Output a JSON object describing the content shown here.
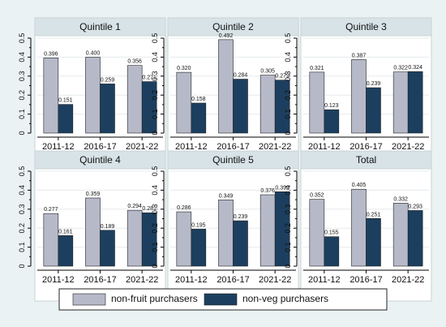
{
  "chart_data": {
    "type": "bar",
    "categories": [
      "2011-12",
      "2016-17",
      "2021-22"
    ],
    "ylim": [
      0,
      0.5
    ],
    "yticks": [
      0,
      0.05,
      0.1,
      0.15,
      0.2,
      0.25,
      0.3,
      0.35,
      0.4,
      0.45,
      0.5
    ],
    "ytick_labels": [
      "0",
      "",
      "0.1",
      "",
      "0.2",
      "",
      "0.3",
      "",
      "0.4",
      "",
      "0.5"
    ],
    "grid": true,
    "legend_position": "bottom",
    "series_colors": [
      "#b6b9c8",
      "#1c3f5f"
    ],
    "series_names": [
      "non-fruit purchasers",
      "non-veg purchasers"
    ],
    "panels": [
      {
        "title": "Quintile 1",
        "series": [
          {
            "name": "non-fruit purchasers",
            "values": [
              0.396,
              0.4,
              0.356
            ],
            "labels": [
              "0.396",
              "0.400",
              "0.356"
            ]
          },
          {
            "name": "non-veg purchasers",
            "values": [
              0.151,
              0.259,
              0.271
            ],
            "labels": [
              "0.151",
              "0.259",
              "0.271"
            ]
          }
        ]
      },
      {
        "title": "Quintile 2",
        "series": [
          {
            "name": "non-fruit purchasers",
            "values": [
              0.32,
              0.492,
              0.305
            ],
            "labels": [
              "0.320",
              "0.492",
              "0.305"
            ]
          },
          {
            "name": "non-veg purchasers",
            "values": [
              0.158,
              0.284,
              0.279
            ],
            "labels": [
              "0.158",
              "0.284",
              "0.279"
            ]
          }
        ]
      },
      {
        "title": "Quintile 3",
        "series": [
          {
            "name": "non-fruit purchasers",
            "values": [
              0.321,
              0.387,
              0.322
            ],
            "labels": [
              "0.321",
              "0.387",
              "0.322"
            ]
          },
          {
            "name": "non-veg purchasers",
            "values": [
              0.123,
              0.239,
              0.324
            ],
            "labels": [
              "0.123",
              "0.239",
              "0.324"
            ]
          }
        ]
      },
      {
        "title": "Quintile 4",
        "series": [
          {
            "name": "non-fruit purchasers",
            "values": [
              0.277,
              0.359,
              0.294
            ],
            "labels": [
              "0.277",
              "0.359",
              "0.294"
            ]
          },
          {
            "name": "non-veg purchasers",
            "values": [
              0.161,
              0.189,
              0.281
            ],
            "labels": [
              "0.161",
              "0.189",
              "0.281"
            ]
          }
        ]
      },
      {
        "title": "Quintile 5",
        "series": [
          {
            "name": "non-fruit purchasers",
            "values": [
              0.286,
              0.349,
              0.376
            ],
            "labels": [
              "0.286",
              "0.349",
              "0.376"
            ]
          },
          {
            "name": "non-veg purchasers",
            "values": [
              0.195,
              0.239,
              0.392
            ],
            "labels": [
              "0.195",
              "0.239",
              "0.392"
            ]
          }
        ]
      },
      {
        "title": "Total",
        "series": [
          {
            "name": "non-fruit purchasers",
            "values": [
              0.352,
              0.405,
              0.332
            ],
            "labels": [
              "0.352",
              "0.405",
              "0.332"
            ]
          },
          {
            "name": "non-veg purchasers",
            "values": [
              0.155,
              0.251,
              0.293
            ],
            "labels": [
              "0.155",
              "0.251",
              "0.293"
            ]
          }
        ]
      }
    ]
  }
}
